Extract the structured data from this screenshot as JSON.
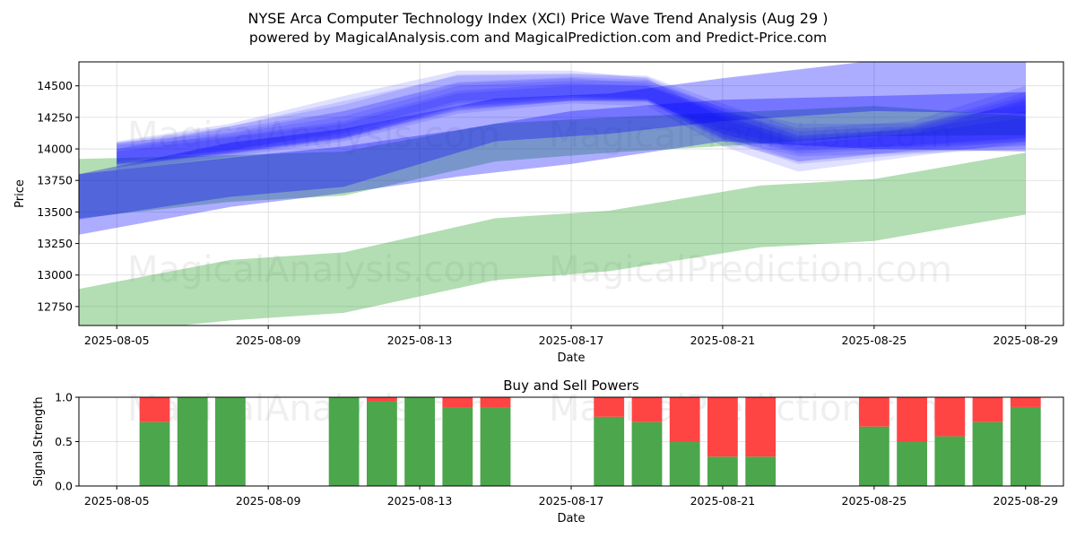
{
  "title_line1": "NYSE Arca Computer Technology Index (XCI) Price Wave Trend Analysis (Aug 29 )",
  "title_line2": "powered by MagicalAnalysis.com and MagicalPrediction.com and Predict-Price.com",
  "watermarks": [
    "MagicalAnalysis.com",
    "MagicalPrediction.com"
  ],
  "colors": {
    "blue_band": "#0000ff",
    "green_band": "#2ca02c",
    "buy": "#4ca64c",
    "sell": "#ff4444",
    "grid": "#d9d9d9"
  },
  "chart_data": [
    {
      "type": "area",
      "title": "",
      "xlabel": "Date",
      "ylabel": "Price",
      "xlim": [
        "2025-08-04",
        "2025-08-30"
      ],
      "ylim": [
        12600,
        14690
      ],
      "x_ticks": [
        "2025-08-05",
        "2025-08-09",
        "2025-08-13",
        "2025-08-17",
        "2025-08-21",
        "2025-08-25",
        "2025-08-29"
      ],
      "y_ticks": [
        12750,
        13000,
        13250,
        13500,
        13750,
        14000,
        14250,
        14500
      ],
      "grid": true,
      "green_bands": [
        {
          "x": [
            "2025-08-04",
            "2025-08-08",
            "2025-08-11",
            "2025-08-15",
            "2025-08-18",
            "2025-08-22",
            "2025-08-25",
            "2025-08-29"
          ],
          "upper": [
            13920,
            13950,
            13980,
            14200,
            14250,
            14300,
            14340,
            14260
          ],
          "lower": [
            13450,
            13580,
            13630,
            13900,
            13970,
            14040,
            14100,
            14110
          ]
        },
        {
          "x": [
            "2025-08-04",
            "2025-08-08",
            "2025-08-11",
            "2025-08-15",
            "2025-08-18",
            "2025-08-22",
            "2025-08-25",
            "2025-08-29"
          ],
          "upper": [
            12890,
            13120,
            13180,
            13450,
            13510,
            13710,
            13760,
            13970
          ],
          "lower": [
            12520,
            12640,
            12700,
            12960,
            13030,
            13220,
            13270,
            13480
          ]
        }
      ],
      "blue_bands": [
        {
          "x": [
            "2025-08-04",
            "2025-08-08",
            "2025-08-11",
            "2025-08-15",
            "2025-08-18",
            "2025-08-21",
            "2025-08-25",
            "2025-08-29"
          ],
          "upper": [
            13800,
            14050,
            14160,
            14400,
            14440,
            14560,
            14700,
            14720
          ],
          "lower": [
            13440,
            13620,
            13700,
            14060,
            14120,
            14220,
            14300,
            14280
          ]
        },
        {
          "x": [
            "2025-08-05",
            "2025-08-08",
            "2025-08-11",
            "2025-08-14",
            "2025-08-17",
            "2025-08-19",
            "2025-08-21",
            "2025-08-23",
            "2025-08-26",
            "2025-08-29"
          ],
          "upper": [
            14050,
            14130,
            14300,
            14520,
            14560,
            14520,
            14280,
            14060,
            14170,
            14420
          ],
          "lower": [
            13830,
            13940,
            14060,
            14280,
            14360,
            14340,
            14020,
            13820,
            13940,
            14050
          ]
        },
        {
          "x": [
            "2025-08-05",
            "2025-08-08",
            "2025-08-11",
            "2025-08-14",
            "2025-08-17",
            "2025-08-19",
            "2025-08-21",
            "2025-08-23",
            "2025-08-26",
            "2025-08-29"
          ],
          "upper": [
            14000,
            14180,
            14350,
            14590,
            14600,
            14580,
            14360,
            14160,
            14220,
            14500
          ],
          "lower": [
            13850,
            13980,
            14090,
            14340,
            14400,
            14380,
            14060,
            13900,
            13990,
            14060
          ]
        },
        {
          "x": [
            "2025-08-05",
            "2025-08-08",
            "2025-08-11",
            "2025-08-14",
            "2025-08-17",
            "2025-08-19",
            "2025-08-21",
            "2025-08-23",
            "2025-08-26",
            "2025-08-29"
          ],
          "upper": [
            14030,
            14100,
            14220,
            14460,
            14520,
            14500,
            14300,
            14100,
            14150,
            14300
          ],
          "lower": [
            13880,
            13960,
            14080,
            14300,
            14380,
            14380,
            14120,
            13960,
            14010,
            14060
          ]
        },
        {
          "x": [
            "2025-08-05",
            "2025-08-08",
            "2025-08-11",
            "2025-08-14",
            "2025-08-17",
            "2025-08-19",
            "2025-08-21",
            "2025-08-23",
            "2025-08-26",
            "2025-08-29"
          ],
          "upper": [
            14060,
            14200,
            14420,
            14620,
            14620,
            14560,
            14240,
            14040,
            14120,
            14400
          ],
          "lower": [
            13900,
            13990,
            14140,
            14380,
            14420,
            14400,
            14080,
            13880,
            13960,
            14000
          ]
        },
        {
          "x": [
            "2025-08-05",
            "2025-08-08",
            "2025-08-11",
            "2025-08-14",
            "2025-08-17",
            "2025-08-19",
            "2025-08-21",
            "2025-08-23",
            "2025-08-26",
            "2025-08-29"
          ],
          "upper": [
            14000,
            14120,
            14260,
            14500,
            14540,
            14540,
            14330,
            14200,
            14200,
            14350
          ],
          "lower": [
            13870,
            13970,
            14100,
            14330,
            14390,
            14390,
            14150,
            14000,
            14020,
            14080
          ]
        },
        {
          "x": [
            "2025-08-05",
            "2025-08-08",
            "2025-08-11",
            "2025-08-14",
            "2025-08-17",
            "2025-08-19",
            "2025-08-21",
            "2025-08-23",
            "2025-08-26",
            "2025-08-29"
          ],
          "upper": [
            14040,
            14160,
            14300,
            14530,
            14570,
            14550,
            14300,
            14140,
            14180,
            14450
          ],
          "lower": [
            13860,
            13960,
            14080,
            14320,
            14380,
            14370,
            14080,
            13940,
            13970,
            14030
          ]
        },
        {
          "x": [
            "2025-08-05",
            "2025-08-08",
            "2025-08-11",
            "2025-08-14",
            "2025-08-17",
            "2025-08-19",
            "2025-08-21",
            "2025-08-23",
            "2025-08-26",
            "2025-08-29"
          ],
          "upper": [
            13980,
            14090,
            14200,
            14440,
            14500,
            14500,
            14260,
            14080,
            14120,
            14250
          ],
          "lower": [
            13880,
            13970,
            14090,
            14310,
            14380,
            14390,
            14120,
            13980,
            14030,
            14090
          ]
        },
        {
          "x": [
            "2025-08-05",
            "2025-08-08",
            "2025-08-11",
            "2025-08-14",
            "2025-08-17",
            "2025-08-19",
            "2025-08-21",
            "2025-08-23",
            "2025-08-26",
            "2025-08-29"
          ],
          "upper": [
            14050,
            14180,
            14380,
            14580,
            14590,
            14570,
            14320,
            14110,
            14160,
            14380
          ],
          "lower": [
            13880,
            13990,
            14120,
            14360,
            14410,
            14390,
            14100,
            13900,
            13980,
            14020
          ]
        },
        {
          "x": [
            "2025-08-04",
            "2025-08-08",
            "2025-08-11",
            "2025-08-14",
            "2025-08-17",
            "2025-08-21",
            "2025-08-25",
            "2025-08-29"
          ],
          "upper": [
            13800,
            13930,
            14020,
            14150,
            14300,
            14390,
            14420,
            14450
          ],
          "lower": [
            13320,
            13540,
            13650,
            13780,
            13880,
            14060,
            14000,
            13980
          ]
        }
      ]
    },
    {
      "type": "bar",
      "title": "Buy and Sell Powers",
      "xlabel": "Date",
      "ylabel": "Signal Strength",
      "xlim": [
        "2025-08-04",
        "2025-08-30"
      ],
      "ylim": [
        0,
        1
      ],
      "x_ticks": [
        "2025-08-05",
        "2025-08-09",
        "2025-08-13",
        "2025-08-17",
        "2025-08-21",
        "2025-08-25",
        "2025-08-29"
      ],
      "y_ticks": [
        0.0,
        0.5,
        1.0
      ],
      "y_tick_labels": [
        "0.0",
        "0.5",
        "1.0"
      ],
      "grid": true,
      "dates": [
        "2025-08-06",
        "2025-08-07",
        "2025-08-08",
        "2025-08-11",
        "2025-08-12",
        "2025-08-13",
        "2025-08-14",
        "2025-08-15",
        "2025-08-18",
        "2025-08-19",
        "2025-08-20",
        "2025-08-21",
        "2025-08-22",
        "2025-08-25",
        "2025-08-26",
        "2025-08-27",
        "2025-08-28",
        "2025-08-29"
      ],
      "series": [
        {
          "name": "Buy",
          "values": [
            0.72,
            1.0,
            1.0,
            1.0,
            0.95,
            1.0,
            0.88,
            0.88,
            0.78,
            0.72,
            0.5,
            0.33,
            0.33,
            0.67,
            0.5,
            0.56,
            0.72,
            0.89
          ]
        },
        {
          "name": "Sell",
          "values": [
            0.28,
            0.0,
            0.0,
            0.0,
            0.05,
            0.0,
            0.12,
            0.12,
            0.22,
            0.28,
            0.5,
            0.67,
            0.67,
            0.33,
            0.5,
            0.44,
            0.28,
            0.11
          ]
        }
      ]
    }
  ]
}
